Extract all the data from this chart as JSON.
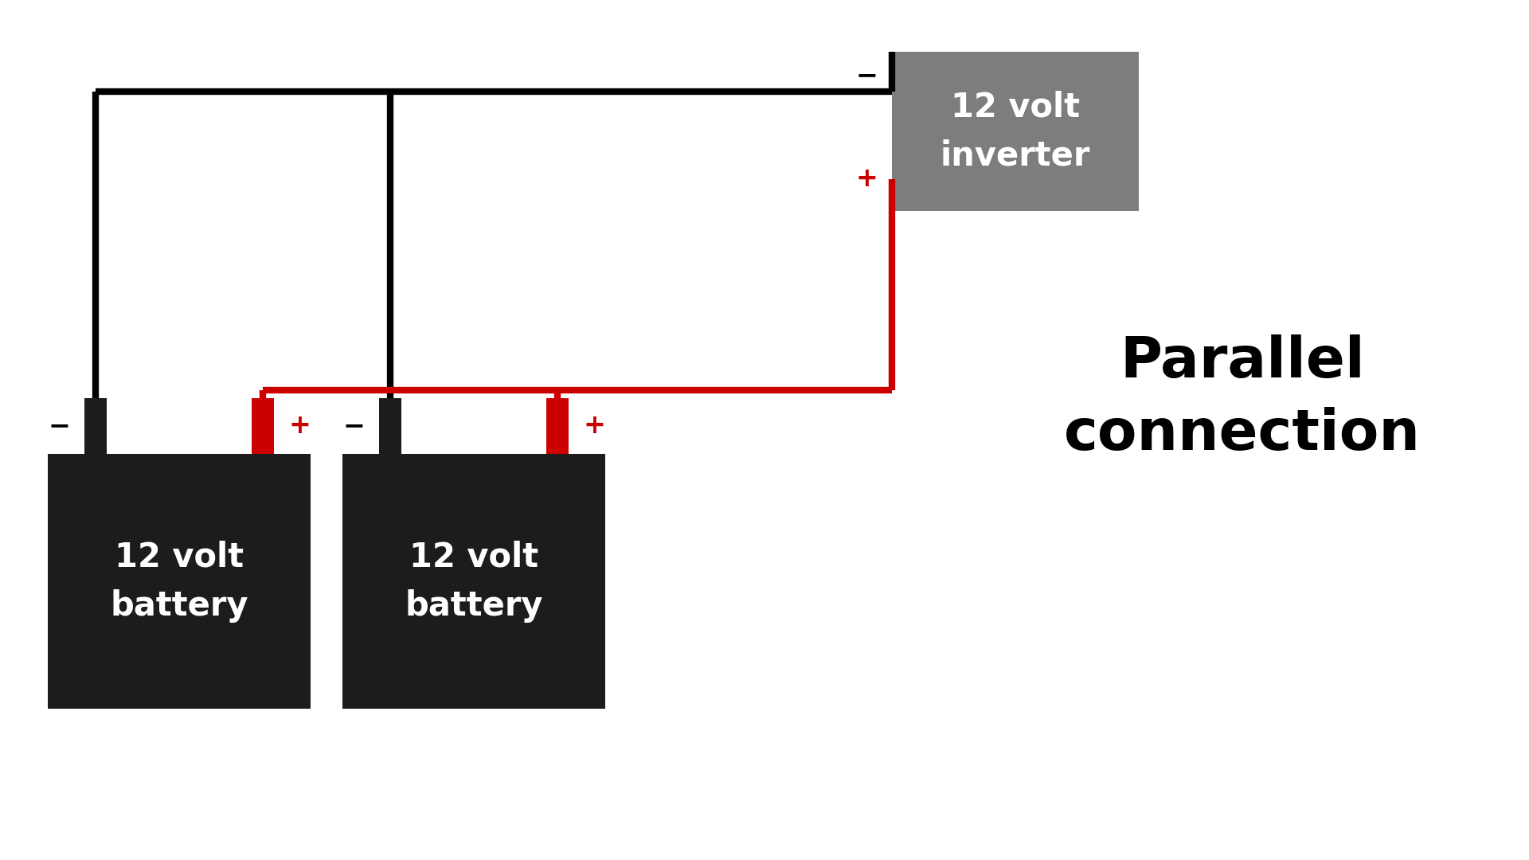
{
  "bg_color": "#ffffff",
  "wire_black_color": "#000000",
  "wire_red_color": "#cc0000",
  "battery_color": "#1c1c1c",
  "battery_text_color": "#ffffff",
  "battery_label": "12 volt\nbattery",
  "inverter_color": "#7d7d7d",
  "inverter_text_color": "#ffffff",
  "inverter_label": "12 volt\ninverter",
  "title_text": "Parallel\nconnection",
  "title_color": "#000000",
  "minus_label": "−",
  "plus_label": "+",
  "terminal_black_color": "#1c1c1c",
  "terminal_red_color": "#cc0000",
  "line_width": 6
}
